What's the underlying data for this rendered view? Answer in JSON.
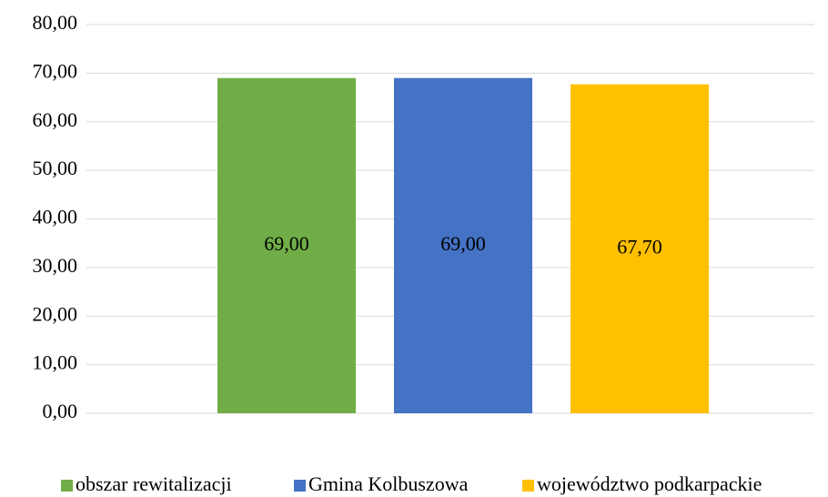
{
  "chart_data": {
    "type": "bar",
    "categories": [
      null
    ],
    "series": [
      {
        "name": "obszar rewitalizacji",
        "color": "#70ad47",
        "values": [
          69
        ],
        "value_labels": [
          "69,00"
        ]
      },
      {
        "name": "Gmina Kolbuszowa",
        "color": "#4472c4",
        "values": [
          69
        ],
        "value_labels": [
          "69,00"
        ]
      },
      {
        "name": "województwo podkarpackie",
        "color": "#ffc000",
        "values": [
          67.7
        ],
        "value_labels": [
          "67,70"
        ]
      }
    ],
    "ylim": [
      0,
      80
    ],
    "yticks": [
      {
        "value": 0,
        "label": "0,00"
      },
      {
        "value": 10,
        "label": "10,00"
      },
      {
        "value": 20,
        "label": "20,00"
      },
      {
        "value": 30,
        "label": "30,00"
      },
      {
        "value": 40,
        "label": "40,00"
      },
      {
        "value": 50,
        "label": "50,00"
      },
      {
        "value": 60,
        "label": "60,00"
      },
      {
        "value": 70,
        "label": "70,00"
      },
      {
        "value": 80,
        "label": "80,00"
      }
    ],
    "grid": true,
    "legend": "bottom"
  }
}
